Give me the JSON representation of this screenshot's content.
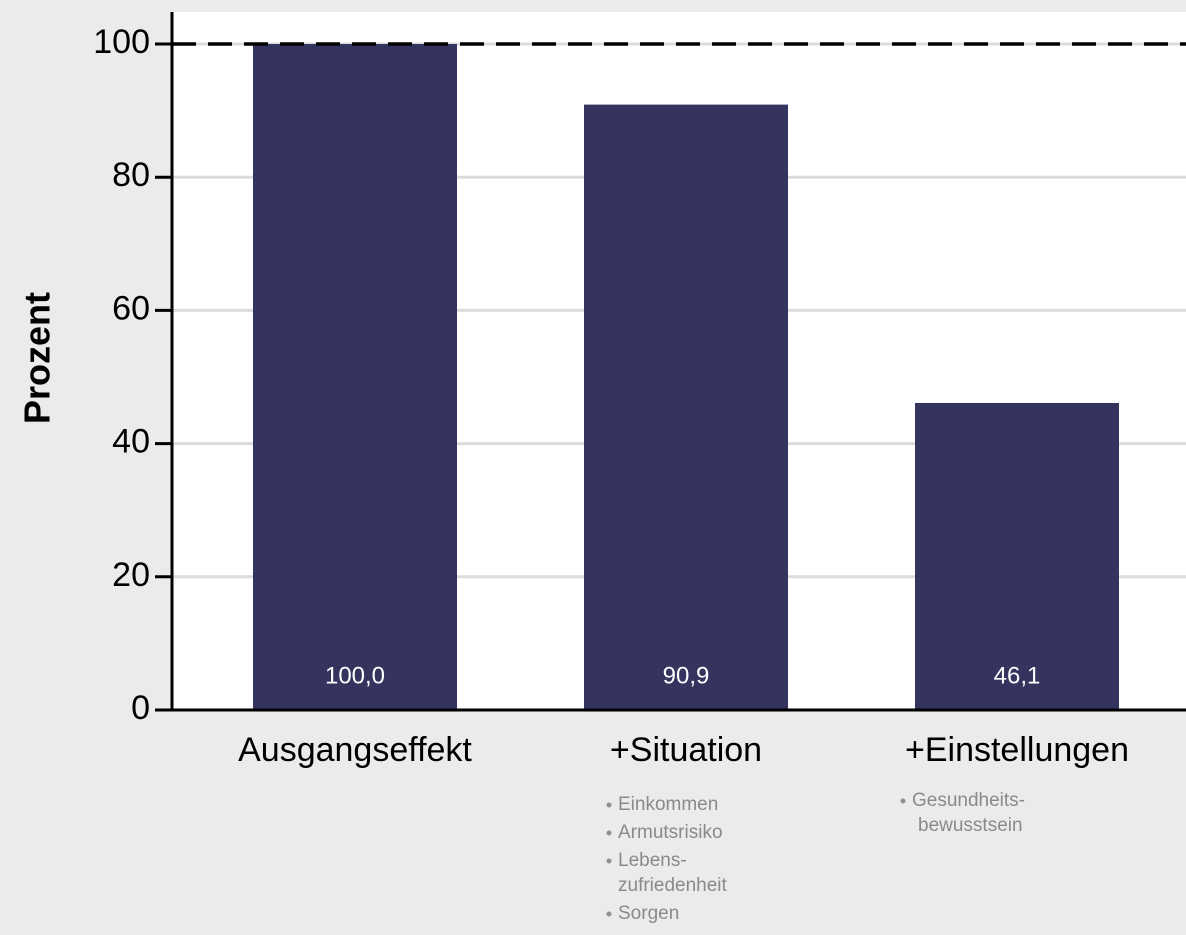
{
  "chart_data": {
    "type": "bar",
    "y_label": "Prozent",
    "categories": [
      "Ausgangseffekt",
      "+Situation",
      "+Einstellungen"
    ],
    "values": [
      100.0,
      90.9,
      46.1
    ],
    "value_labels": [
      "100,0",
      "90,9",
      "46,1"
    ],
    "color": "#34345f",
    "ylim": [
      0,
      100
    ],
    "yticks": [
      0,
      20,
      40,
      60,
      80,
      100
    ],
    "grid": true,
    "reference_line": 100,
    "annotations": [
      {
        "category": 1,
        "items": [
          [
            "Einkommen"
          ],
          [
            "Armutsrisiko"
          ],
          [
            "Lebens-",
            "zufriedenheit"
          ],
          [
            "Sorgen"
          ]
        ]
      },
      {
        "category": 2,
        "items": [
          [
            "Gesundheits-",
            "bewusstsein"
          ]
        ]
      }
    ]
  }
}
